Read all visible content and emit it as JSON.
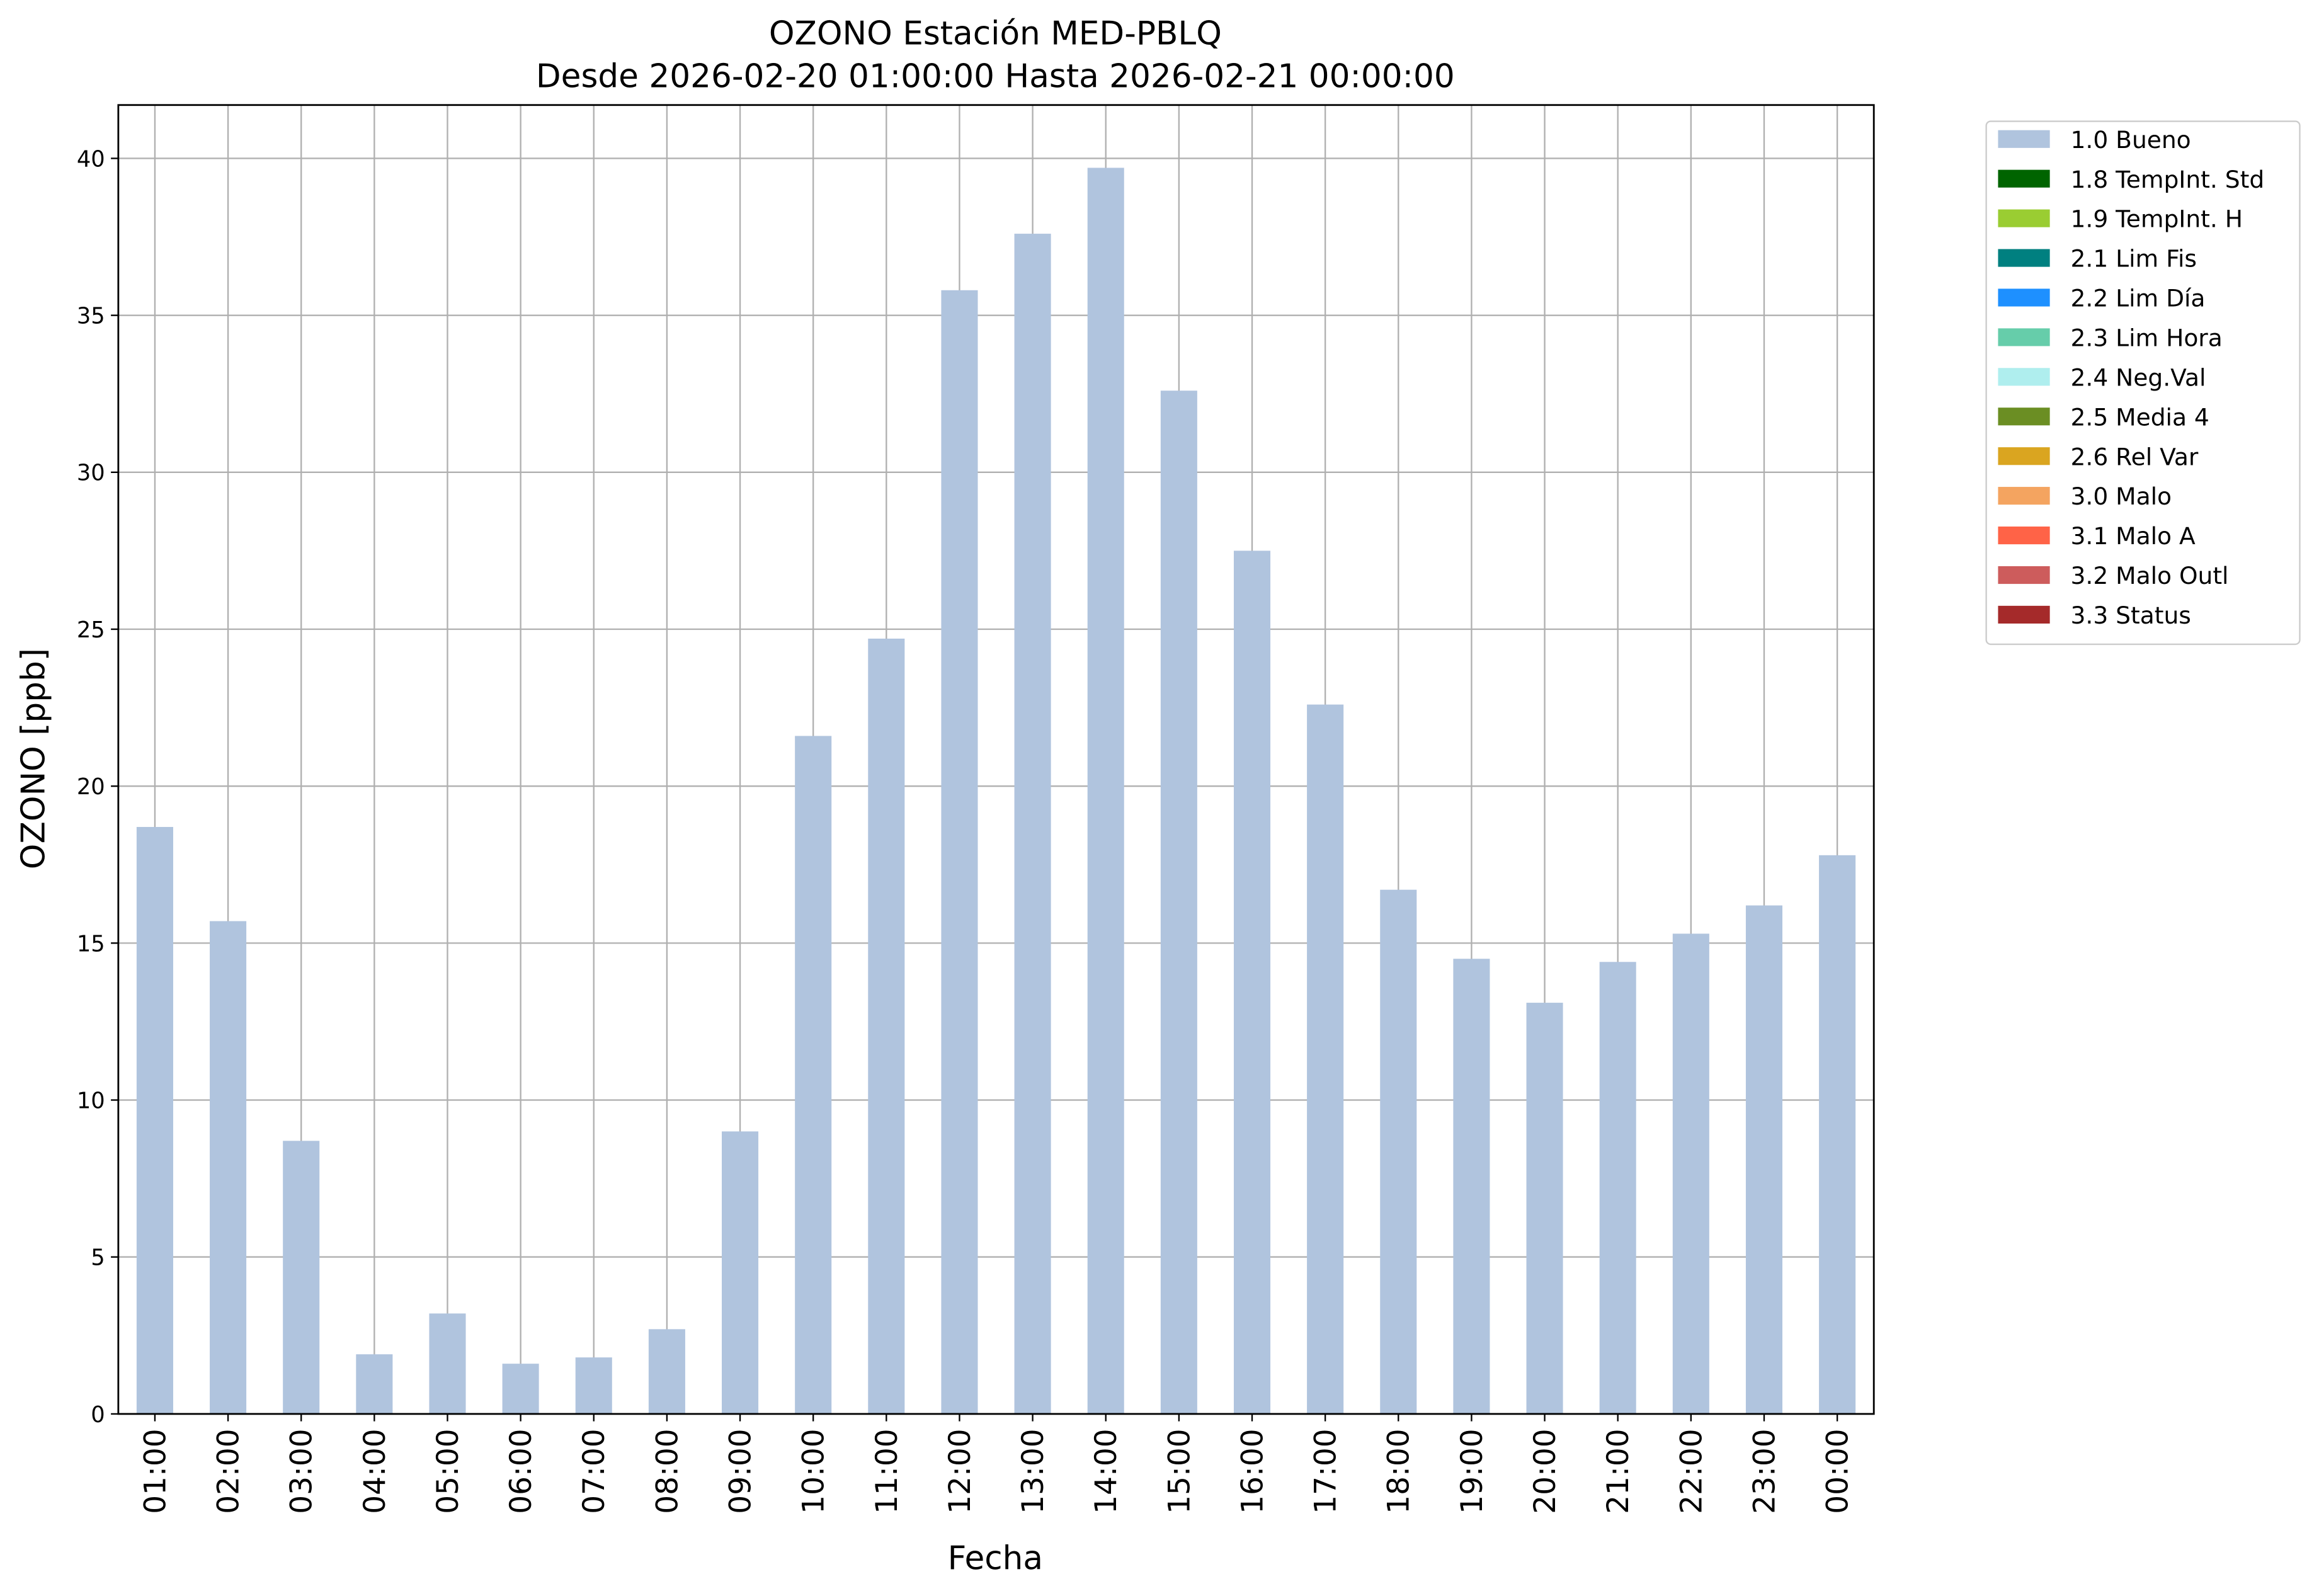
{
  "chart_data": {
    "type": "bar",
    "title": "OZONO Estación MED-PBLQ",
    "subtitle": "Desde 2026-02-20 01:00:00 Hasta 2026-02-21 00:00:00",
    "x_label": "Fecha",
    "y_label": "OZONO [ppb]",
    "categories": [
      "01:00",
      "02:00",
      "03:00",
      "04:00",
      "05:00",
      "06:00",
      "07:00",
      "08:00",
      "09:00",
      "10:00",
      "11:00",
      "12:00",
      "13:00",
      "14:00",
      "15:00",
      "16:00",
      "17:00",
      "18:00",
      "19:00",
      "20:00",
      "21:00",
      "22:00",
      "23:00",
      "00:00"
    ],
    "series": [
      {
        "name": "1.0 Bueno",
        "color": "#b0c4de",
        "values": [
          18.7,
          15.7,
          8.7,
          1.9,
          3.2,
          1.6,
          1.8,
          2.7,
          9.0,
          21.6,
          24.7,
          35.8,
          37.6,
          39.7,
          32.6,
          27.5,
          22.6,
          16.7,
          14.5,
          13.1,
          14.4,
          15.3,
          16.2,
          17.8
        ]
      },
      {
        "name": "1.8 TempInt. Std",
        "color": "#006400"
      },
      {
        "name": "1.9 TempInt. H",
        "color": "#9acd32"
      },
      {
        "name": "2.1 Lim Fis",
        "color": "#008080"
      },
      {
        "name": "2.2 Lim Día",
        "color": "#1e90ff"
      },
      {
        "name": "2.3 Lim Hora",
        "color": "#66cdaa"
      },
      {
        "name": "2.4 Neg.Val",
        "color": "#afeeee"
      },
      {
        "name": "2.5 Media 4",
        "color": "#6b8e23"
      },
      {
        "name": "2.6 Rel Var",
        "color": "#daa520"
      },
      {
        "name": "3.0 Malo",
        "color": "#f4a460"
      },
      {
        "name": "3.1 Malo A",
        "color": "#ff6347"
      },
      {
        "name": "3.2 Malo Outl",
        "color": "#cd5c5c"
      },
      {
        "name": "3.3 Status",
        "color": "#a52a2a"
      }
    ],
    "ylim": [
      0,
      41.7
    ],
    "yticks": [
      0,
      5,
      10,
      15,
      20,
      25,
      30,
      35,
      40
    ],
    "grid": true,
    "legend": "outside-right"
  }
}
